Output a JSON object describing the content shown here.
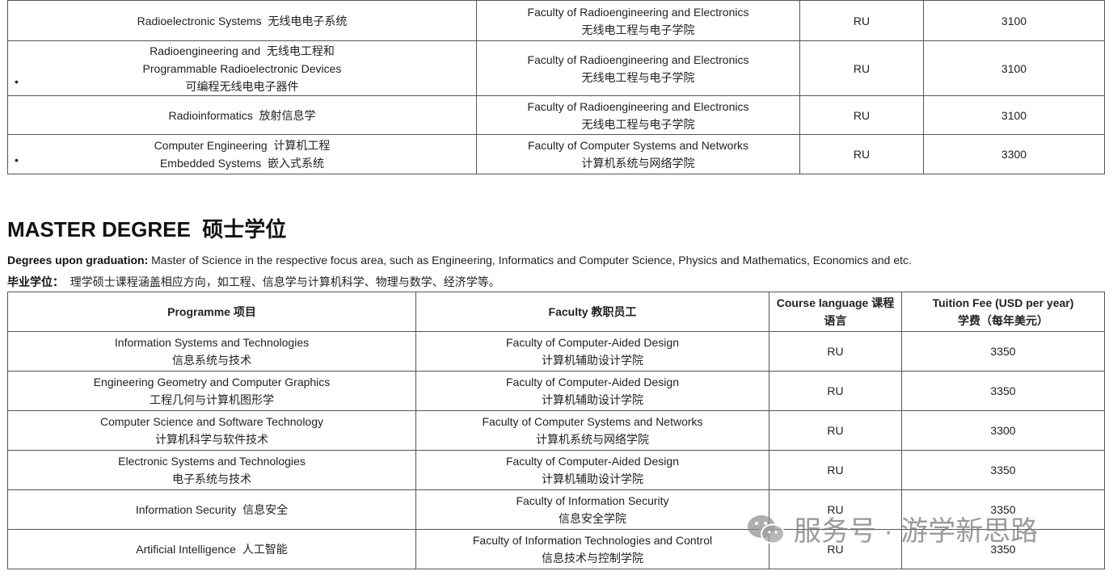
{
  "top_table": {
    "rows": [
      {
        "programme": [
          "Radioelectronic Systems  无线电电子系统"
        ],
        "faculty": [
          "Faculty of Radioengineering and Electronics",
          "无线电工程与电子学院"
        ],
        "language": "RU",
        "fee": 3100,
        "bullet": false
      },
      {
        "programme": [
          "Radioengineering and  无线电工程和",
          "Programmable Radioelectronic Devices",
          "可编程无线电电子器件"
        ],
        "faculty": [
          "Faculty of Radioengineering and Electronics",
          "无线电工程与电子学院"
        ],
        "language": "RU",
        "fee": 3100,
        "bullet": true
      },
      {
        "programme": [
          "Radioinformatics  放射信息学"
        ],
        "faculty": [
          "Faculty of Radioengineering and Electronics",
          "无线电工程与电子学院"
        ],
        "language": "RU",
        "fee": 3100,
        "bullet": false
      },
      {
        "programme": [
          "Computer Engineering  计算机工程",
          "Embedded Systems  嵌入式系统"
        ],
        "faculty": [
          "Faculty of Computer Systems and Networks",
          "计算机系统与网络学院"
        ],
        "language": "RU",
        "fee": 3300,
        "bullet": true
      }
    ]
  },
  "section": {
    "title": "MASTER DEGREE  硕士学位",
    "degrees_label": "Degrees upon graduation:",
    "degrees_text": "Master of Science in the respective focus area, such as Engineering, Informatics and Computer Science, Physics and Mathematics, Economics and etc.",
    "cn_label": "毕业学位：",
    "cn_text": "理学硕士课程涵盖相应方向，如工程、信息学与计算机科学、物理与数学、经济学等。"
  },
  "table": {
    "header": [
      [
        "Programme  项目"
      ],
      [
        "Faculty  教职员工"
      ],
      [
        "Course language  课程语言"
      ],
      [
        "Tuition Fee (USD per year)",
        "学费（每年美元）"
      ]
    ],
    "rows": [
      {
        "programme": [
          "Information Systems and Technologies",
          "信息系统与技术"
        ],
        "faculty": [
          "Faculty of Computer-Aided Design",
          "计算机辅助设计学院"
        ],
        "language": "RU",
        "fee": 3350
      },
      {
        "programme": [
          "Engineering Geometry and Computer Graphics",
          "工程几何与计算机图形学"
        ],
        "faculty": [
          "Faculty of Computer-Aided Design",
          "计算机辅助设计学院"
        ],
        "language": "RU",
        "fee": 3350
      },
      {
        "programme": [
          "Computer Science and Software Technology",
          "计算机科学与软件技术"
        ],
        "faculty": [
          "Faculty of Computer Systems and Networks",
          "计算机系统与网络学院"
        ],
        "language": "RU",
        "fee": 3300
      },
      {
        "programme": [
          "Electronic Systems and Technologies",
          "电子系统与技术"
        ],
        "faculty": [
          "Faculty of Computer-Aided Design",
          "计算机辅助设计学院"
        ],
        "language": "RU",
        "fee": 3350
      },
      {
        "programme": [
          "Information Security  信息安全"
        ],
        "faculty": [
          "Faculty of Information Security",
          "信息安全学院"
        ],
        "language": "RU",
        "fee": 3350
      },
      {
        "programme": [
          "Artificial Intelligence  人工智能"
        ],
        "faculty": [
          "Faculty of Information Technologies and Control",
          "信息技术与控制学院"
        ],
        "language": "RU",
        "fee": 3350
      }
    ]
  },
  "watermark": "服务号 · 游学新思路"
}
